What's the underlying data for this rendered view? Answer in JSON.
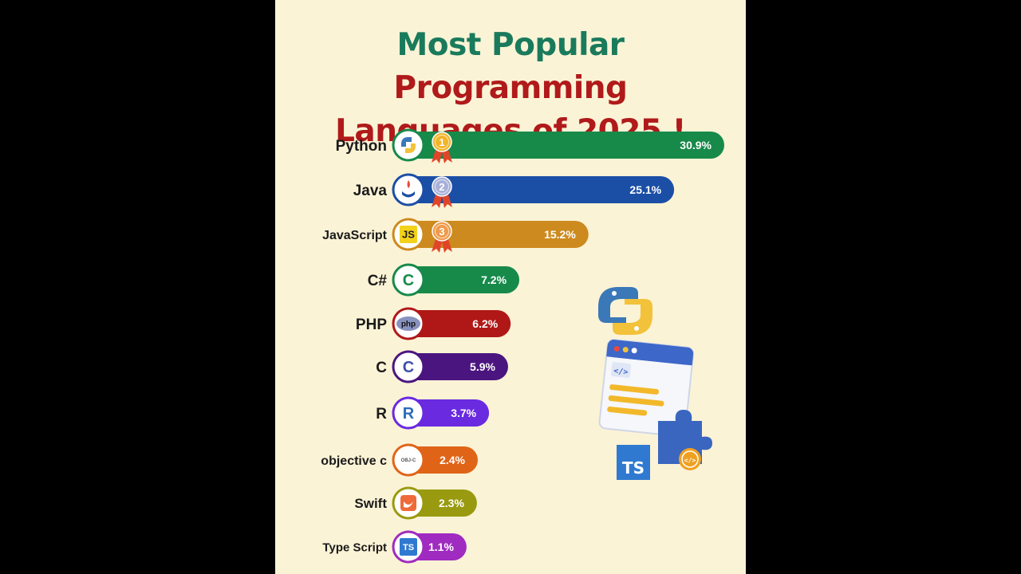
{
  "title": {
    "part1": "Most Popular",
    "part2": "Programming",
    "part3": "Languages of 2025 !"
  },
  "chart_data": {
    "type": "bar",
    "orientation": "horizontal",
    "categories": [
      "Python",
      "Java",
      "JavaScript",
      "C#",
      "PHP",
      "C",
      "R",
      "objective c",
      "Swift",
      "Type Script"
    ],
    "values": [
      30.9,
      25.1,
      15.2,
      7.2,
      6.2,
      5.9,
      3.7,
      2.4,
      2.3,
      1.1
    ],
    "value_labels": [
      "30.9%",
      "25.1%",
      "15.2%",
      "7.2%",
      "6.2%",
      "5.9%",
      "3.7%",
      "2.4%",
      "2.3%",
      "1.1%"
    ],
    "colors": [
      "#178a4a",
      "#1b4fa6",
      "#cd8a1e",
      "#178a4a",
      "#b01818",
      "#4b1580",
      "#6a2ae0",
      "#e06418",
      "#9a9a10",
      "#a02bc0"
    ],
    "icons": [
      "python-icon",
      "java-icon",
      "js-icon",
      "csharp-icon",
      "php-icon",
      "c-icon",
      "r-icon",
      "objc-icon",
      "swift-icon",
      "ts-icon"
    ],
    "icon_texts": [
      "",
      "",
      "JS",
      "C",
      "php",
      "C",
      "R",
      "OBJ-C",
      "",
      "TS"
    ],
    "medals": [
      "1",
      "2",
      "3"
    ],
    "medal_colors": [
      "#f2b42a",
      "#a8b0d8",
      "#f09a4a"
    ],
    "grid": false,
    "legend": "none"
  },
  "illustration": {
    "badge_text": "TS",
    "code_symbol": "</>"
  }
}
